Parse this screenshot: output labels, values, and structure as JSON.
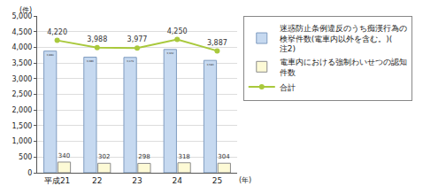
{
  "chart_data": {
    "type": "bar",
    "ylabel": "(件)",
    "xlabel": "(年)",
    "categories": [
      "平成21",
      "22",
      "23",
      "24",
      "25"
    ],
    "series": [
      {
        "name": "迷惑防止条例違反のうち痴漢行為の検挙件数(電車内以外を含む。)(注2)",
        "type": "bar",
        "color": "#c6d9f0",
        "values": [
          3880,
          3686,
          3679,
          3932,
          3583
        ],
        "value_labels": [
          "3,880",
          "3,686",
          "3,679",
          "3,932",
          "3,583"
        ]
      },
      {
        "name": "電車内における強制わいせつの認知件数",
        "type": "bar",
        "color": "#fdfad6",
        "values": [
          340,
          302,
          298,
          318,
          304
        ]
      },
      {
        "name": "合計",
        "type": "line",
        "color": "#a9c93c",
        "marker": "circle",
        "values": [
          4220,
          3988,
          3977,
          4250,
          3887
        ],
        "value_labels": [
          "4,220",
          "3,988",
          "3,977",
          "4,250",
          "3,887"
        ]
      }
    ],
    "ylim": [
      0,
      5000
    ],
    "yticks": [
      0,
      500,
      {
        "value": 1000,
        "label": "1,000"
      },
      {
        "value": 1500,
        "label": "1,500"
      },
      {
        "value": 2000,
        "label": "2,000"
      },
      {
        "value": 2500,
        "label": "2,500"
      },
      {
        "value": 3000,
        "label": "3,000"
      },
      {
        "value": 3500,
        "label": "3,500"
      },
      {
        "value": 4000,
        "label": "4,000"
      },
      {
        "value": 4500,
        "label": "4,500"
      },
      {
        "value": 5000,
        "label": "5,000"
      }
    ],
    "grid": true,
    "legend": "right",
    "data_labels": true
  }
}
